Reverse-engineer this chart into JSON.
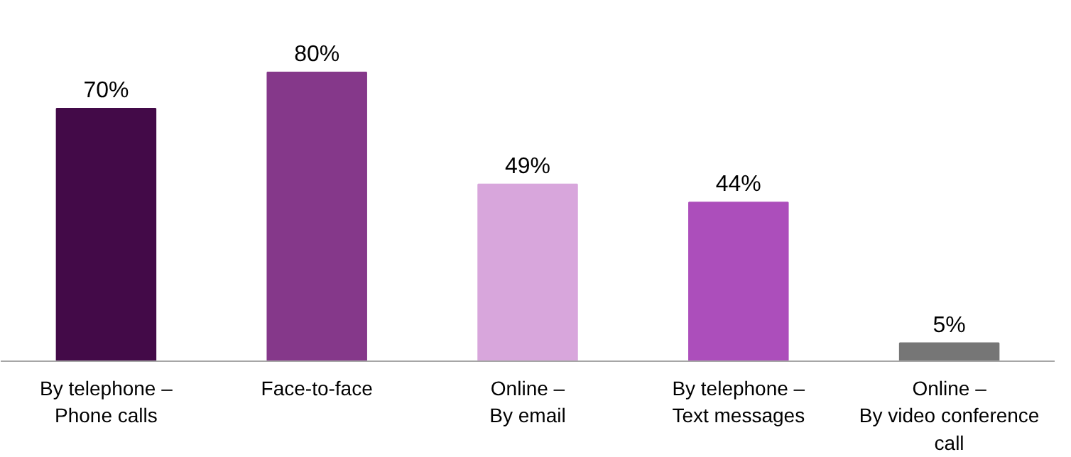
{
  "chart_data": {
    "type": "bar",
    "data_labels": true,
    "categories": [
      "By telephone –\nPhone calls",
      "Face-to-face",
      "Online –\nBy email",
      "By telephone –\nText messages",
      "Online –\nBy video conference\ncall"
    ],
    "values": [
      70,
      80,
      49,
      44,
      5
    ],
    "colors": [
      "#430a48",
      "#85388a",
      "#d8a6dc",
      "#ac4ebb",
      "#767676"
    ],
    "value_labels": [
      "70%",
      "80%",
      "49%",
      "44%",
      "5%"
    ]
  }
}
